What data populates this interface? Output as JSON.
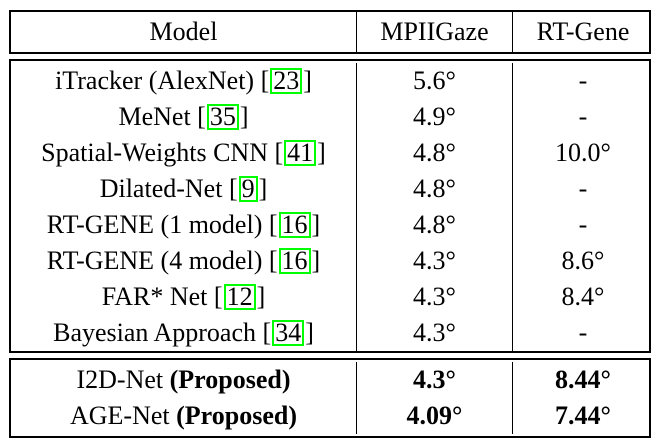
{
  "header": {
    "model": "Model",
    "mpiigaze": "MPIIGaze",
    "rtgene": "RT-Gene"
  },
  "rows": [
    {
      "name": "iTracker (AlexNet)",
      "ref": "23",
      "mpii": "5.6°",
      "rt": "-"
    },
    {
      "name": "MeNet",
      "ref": "35",
      "mpii": "4.9°",
      "rt": "-"
    },
    {
      "name": "Spatial-Weights CNN",
      "ref": "41",
      "mpii": "4.8°",
      "rt": "10.0°"
    },
    {
      "name": "Dilated-Net",
      "ref": "9",
      "mpii": "4.8°",
      "rt": "-"
    },
    {
      "name": "RT-GENE (1 model)",
      "ref": "16",
      "mpii": "4.8°",
      "rt": "-"
    },
    {
      "name": "RT-GENE (4 model)",
      "ref": "16",
      "mpii": "4.3°",
      "rt": "8.6°"
    },
    {
      "name": "FAR* Net",
      "ref": "12",
      "mpii": "4.3°",
      "rt": "8.4°"
    },
    {
      "name": "Bayesian Approach",
      "ref": "34",
      "mpii": "4.3°",
      "rt": "-"
    }
  ],
  "proposed": [
    {
      "name": "I2D-Net",
      "tag": "(Proposed)",
      "mpii": "4.3°",
      "rt": "8.44°"
    },
    {
      "name": "AGE-Net",
      "tag": "(Proposed)",
      "mpii": "4.09°",
      "rt": "7.44°"
    }
  ]
}
